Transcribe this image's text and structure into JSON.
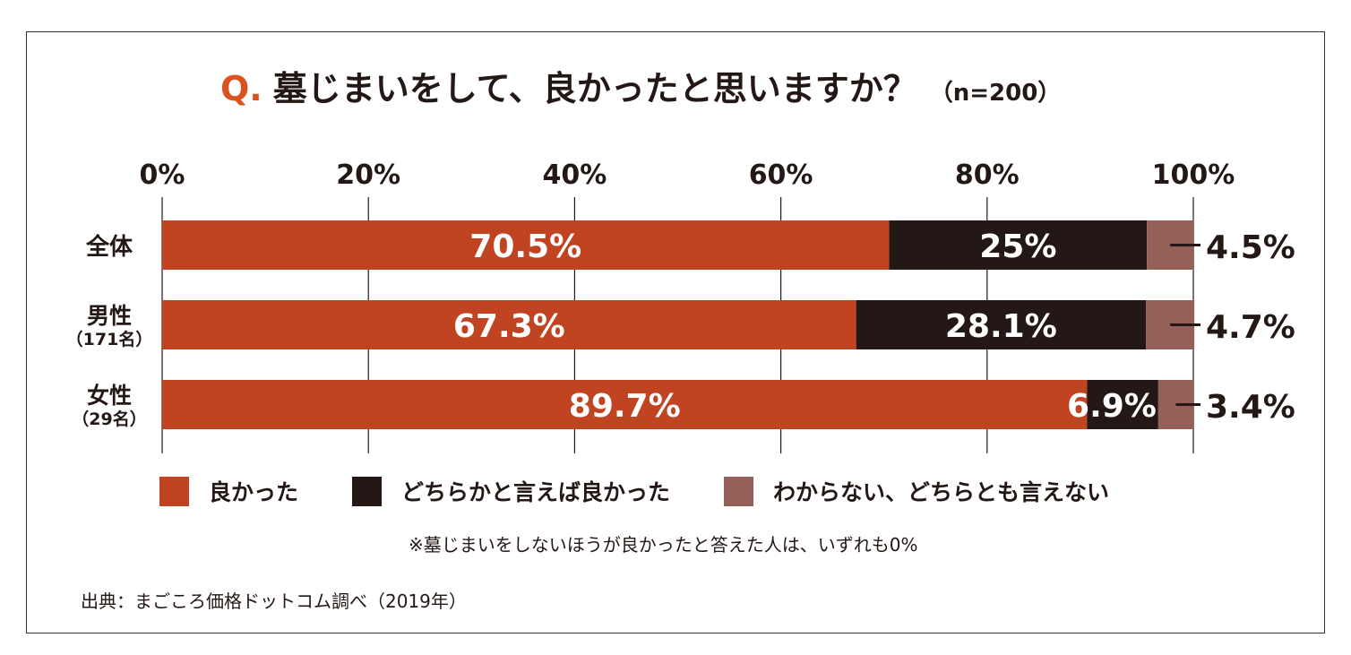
{
  "title": {
    "q": "Q.",
    "text": "墓じまいをして、良かったと思いますか？",
    "n": "（n=200）"
  },
  "chart_data": {
    "type": "bar",
    "orientation": "horizontal",
    "stacked": true,
    "categories": [
      {
        "label": "全体",
        "sub": ""
      },
      {
        "label": "男性",
        "sub": "（171名）"
      },
      {
        "label": "女性",
        "sub": "（29名）"
      }
    ],
    "series": [
      {
        "name": "良かった",
        "color": "#c04422",
        "values": [
          70.5,
          67.3,
          89.7
        ],
        "labels": [
          "70.5%",
          "67.3%",
          "89.7%"
        ]
      },
      {
        "name": "どちらかと言えば良かった",
        "color": "#231815",
        "values": [
          25,
          28.1,
          6.9
        ],
        "labels": [
          "25%",
          "28.1%",
          "6.9%"
        ]
      },
      {
        "name": "わからない、どちらとも言えない",
        "color": "#946058",
        "values": [
          4.5,
          4.7,
          3.4
        ],
        "labels": [
          "4.5%",
          "4.7%",
          "3.4%"
        ]
      }
    ],
    "xticks": [
      "0%",
      "20%",
      "40%",
      "60%",
      "80%",
      "100%"
    ],
    "xlim": [
      0,
      100
    ],
    "grid": true,
    "legend_position": "bottom"
  },
  "note": "※墓じまいをしないほうが良かったと答えた人は、いずれも0%",
  "source": "出典：まごころ価格ドットコム調べ（2019年）"
}
